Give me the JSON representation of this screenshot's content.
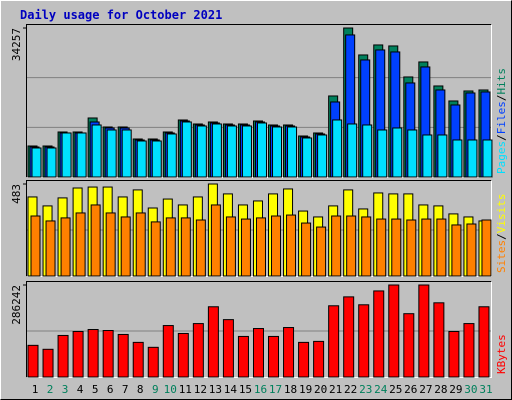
{
  "chart_data": [
    {
      "type": "bar",
      "title": "Daily usage for October 2021",
      "legend_separator": "/",
      "ylim": [
        0,
        34257
      ],
      "yticks": [
        34257
      ],
      "series": [
        {
          "name": "Hits",
          "color": "#00805c",
          "values": [
            7130,
            7130,
            10350,
            10350,
            13570,
            11500,
            11500,
            8740,
            8740,
            10350,
            13110,
            12190,
            12650,
            12190,
            12190,
            12880,
            11960,
            11960,
            9430,
            10120,
            18630,
            34257,
            28060,
            30360,
            30130,
            23000,
            26450,
            20930,
            17480,
            19780,
            20010
          ]
        },
        {
          "name": "Files",
          "color": "#0040ff",
          "values": [
            6900,
            6900,
            10120,
            10120,
            12650,
            11270,
            11270,
            8510,
            8510,
            10120,
            12880,
            11960,
            12420,
            11960,
            11960,
            12650,
            11730,
            11730,
            9200,
            9890,
            17250,
            32660,
            26910,
            29210,
            28750,
            21620,
            25300,
            20010,
            16560,
            19320,
            19550
          ]
        },
        {
          "name": "Pages",
          "color": "#00e0ff",
          "values": [
            6670,
            6670,
            10120,
            10120,
            11960,
            10810,
            10810,
            8280,
            8280,
            9890,
            12650,
            11730,
            12190,
            11730,
            11730,
            12420,
            11500,
            11500,
            8970,
            9660,
            13110,
            12190,
            11960,
            10810,
            11270,
            10810,
            9660,
            9660,
            8510,
            8510,
            8510
          ]
        }
      ]
    },
    {
      "type": "bar",
      "legend_separator": "/",
      "ylim": [
        0,
        483
      ],
      "yticks": [
        483
      ],
      "series": [
        {
          "name": "Visits",
          "color": "#ffff00",
          "values": [
            415,
            368,
            410,
            462,
            467,
            467,
            415,
            452,
            357,
            404,
            373,
            415,
            483,
            431,
            373,
            394,
            431,
            457,
            341,
            310,
            368,
            452,
            352,
            436,
            431,
            431,
            373,
            368,
            326,
            310,
            289
          ]
        },
        {
          "name": "Sites",
          "color": "#ff8000",
          "values": [
            315,
            289,
            305,
            331,
            373,
            331,
            310,
            331,
            284,
            305,
            305,
            294,
            373,
            310,
            299,
            305,
            315,
            320,
            278,
            257,
            315,
            315,
            310,
            299,
            299,
            294,
            299,
            299,
            268,
            273,
            294
          ]
        }
      ]
    },
    {
      "type": "bar",
      "ylim": [
        0,
        286242
      ],
      "yticks": [
        286242
      ],
      "categories": [
        "1",
        "2",
        "3",
        "4",
        "5",
        "6",
        "7",
        "8",
        "9",
        "10",
        "11",
        "12",
        "13",
        "14",
        "15",
        "16",
        "17",
        "18",
        "19",
        "20",
        "21",
        "22",
        "23",
        "24",
        "25",
        "26",
        "27",
        "28",
        "29",
        "30",
        "31"
      ],
      "category_colors": [
        "#000000",
        "#00805c",
        "#00805c",
        "#000000",
        "#000000",
        "#000000",
        "#000000",
        "#000000",
        "#00805c",
        "#00805c",
        "#000000",
        "#000000",
        "#000000",
        "#000000",
        "#000000",
        "#00805c",
        "#00805c",
        "#000000",
        "#000000",
        "#000000",
        "#000000",
        "#000000",
        "#00805c",
        "#00805c",
        "#000000",
        "#000000",
        "#000000",
        "#000000",
        "#000000",
        "#00805c",
        "#00805c"
      ],
      "series": [
        {
          "name": "KBytes",
          "color": "#ff0000",
          "values": [
            98496,
            86184,
            129276,
            141588,
            147744,
            144666,
            132354,
            107730,
            92340,
            160056,
            135432,
            166212,
            218538,
            178524,
            126198,
            150822,
            126198,
            153900,
            107730,
            110808,
            221616,
            249318,
            224694,
            267786,
            286242,
            196992,
            286242,
            230850,
            141588,
            166212,
            218538
          ]
        }
      ]
    }
  ]
}
